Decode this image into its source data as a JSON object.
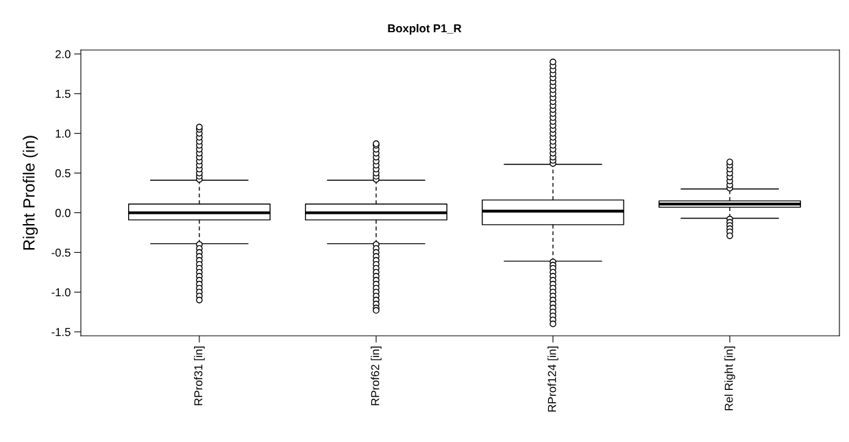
{
  "chart_data": {
    "type": "box",
    "title": "Boxplot P1_R",
    "ylabel": "Right Profile (in)",
    "categories": [
      "RProf31 [in]",
      "RProf62 [in]",
      "RProf124 [in]",
      "Rel Right [in]"
    ],
    "boxes": [
      {
        "low": -0.39,
        "q1": -0.09,
        "median": 0.0,
        "q3": 0.11,
        "high": 0.41,
        "outliers": [
          0.42,
          0.46,
          0.5,
          0.55,
          0.6,
          0.65,
          0.7,
          0.75,
          0.8,
          0.85,
          0.9,
          0.95,
          1.0,
          1.05,
          1.08,
          -0.4,
          -0.45,
          -0.5,
          -0.55,
          -0.6,
          -0.65,
          -0.7,
          -0.75,
          -0.8,
          -0.85,
          -0.9,
          -0.95,
          -1.0,
          -1.05,
          -1.1
        ]
      },
      {
        "low": -0.39,
        "q1": -0.09,
        "median": 0.0,
        "q3": 0.11,
        "high": 0.41,
        "outliers": [
          0.42,
          0.46,
          0.5,
          0.55,
          0.6,
          0.65,
          0.7,
          0.75,
          0.8,
          0.85,
          0.87,
          -0.4,
          -0.45,
          -0.5,
          -0.55,
          -0.6,
          -0.65,
          -0.7,
          -0.75,
          -0.8,
          -0.85,
          -0.9,
          -0.95,
          -1.0,
          -1.05,
          -1.1,
          -1.15,
          -1.2,
          -1.23
        ]
      },
      {
        "low": -0.61,
        "q1": -0.15,
        "median": 0.02,
        "q3": 0.16,
        "high": 0.61,
        "outliers": [
          0.62,
          0.66,
          0.7,
          0.75,
          0.8,
          0.85,
          0.9,
          0.95,
          1.0,
          1.05,
          1.1,
          1.15,
          1.2,
          1.25,
          1.3,
          1.35,
          1.4,
          1.45,
          1.5,
          1.55,
          1.6,
          1.65,
          1.7,
          1.75,
          1.8,
          1.85,
          1.9,
          -0.62,
          -0.66,
          -0.7,
          -0.75,
          -0.8,
          -0.85,
          -0.9,
          -0.95,
          -1.0,
          -1.05,
          -1.1,
          -1.15,
          -1.2,
          -1.25,
          -1.3,
          -1.35,
          -1.4
        ]
      },
      {
        "low": -0.07,
        "q1": 0.07,
        "median": 0.11,
        "q3": 0.15,
        "high": 0.3,
        "outliers": [
          0.31,
          0.35,
          0.4,
          0.45,
          0.5,
          0.55,
          0.6,
          0.64,
          -0.08,
          -0.12,
          -0.16,
          -0.2,
          -0.24,
          -0.29
        ]
      }
    ],
    "ylim": [
      -1.55,
      2.05
    ],
    "yticks": [
      {
        "value": -1.5,
        "label": "-1.5"
      },
      {
        "value": -1.0,
        "label": "-1.0"
      },
      {
        "value": -0.5,
        "label": "-0.5"
      },
      {
        "value": 0.0,
        "label": "0.0"
      },
      {
        "value": 0.5,
        "label": "0.5"
      },
      {
        "value": 1.0,
        "label": "1.0"
      },
      {
        "value": 1.5,
        "label": "1.5"
      },
      {
        "value": 2.0,
        "label": "2.0"
      }
    ],
    "grid": false,
    "legend": false
  }
}
